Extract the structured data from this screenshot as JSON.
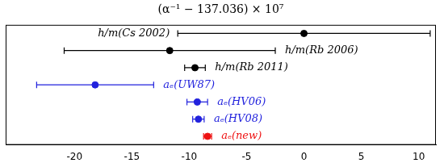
{
  "chart_data": {
    "type": "scatter",
    "title": "(α⁻¹ − 137.036) × 10⁷",
    "categories": [
      "h/m(Cs 2002)",
      "h/m(Rb 2006)",
      "h/m(Rb 2011)",
      "aₑ(UW87)",
      "aₑ(HV06)",
      "aₑ(HV08)",
      "aₑ(new)"
    ],
    "values": [
      0,
      -11.7,
      -9.5,
      -18.2,
      -9.3,
      -9.2,
      -8.4
    ],
    "errors": [
      11,
      9.2,
      0.9,
      5.1,
      0.9,
      0.5,
      0.35
    ],
    "colors": [
      "#000000",
      "#000000",
      "#000000",
      "#2222dd",
      "#2222dd",
      "#2222dd",
      "#ee1111"
    ],
    "xlim": [
      -26,
      11.5
    ],
    "xticks": [
      -20,
      -15,
      -10,
      -5,
      0,
      5,
      10
    ],
    "tick_labels": "x",
    "grid": false,
    "marker": "circle"
  }
}
